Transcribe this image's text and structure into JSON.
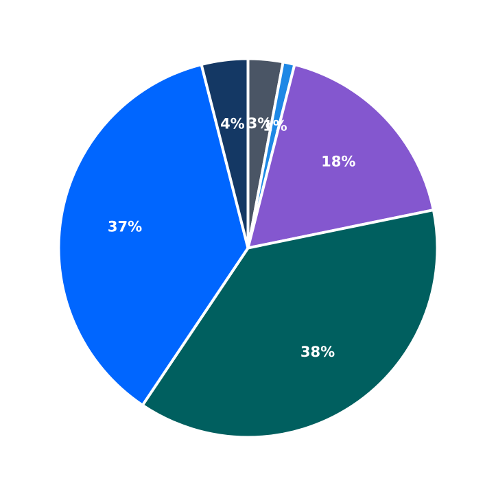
{
  "chart_data": {
    "type": "pie",
    "title": "",
    "legend": "none",
    "start_angle_deg": 90,
    "direction": "clockwise",
    "slices": [
      {
        "label": "3%",
        "value": 3,
        "color": "#4a5565"
      },
      {
        "label": "1%",
        "value": 1,
        "color": "#1e88e5"
      },
      {
        "label": "18%",
        "value": 18,
        "color": "#8457cf"
      },
      {
        "label": "38%",
        "value": 38,
        "color": "#005f5f"
      },
      {
        "label": "37%",
        "value": 37,
        "color": "#0066ff"
      },
      {
        "label": "4%",
        "value": 4,
        "color": "#143864"
      }
    ]
  }
}
